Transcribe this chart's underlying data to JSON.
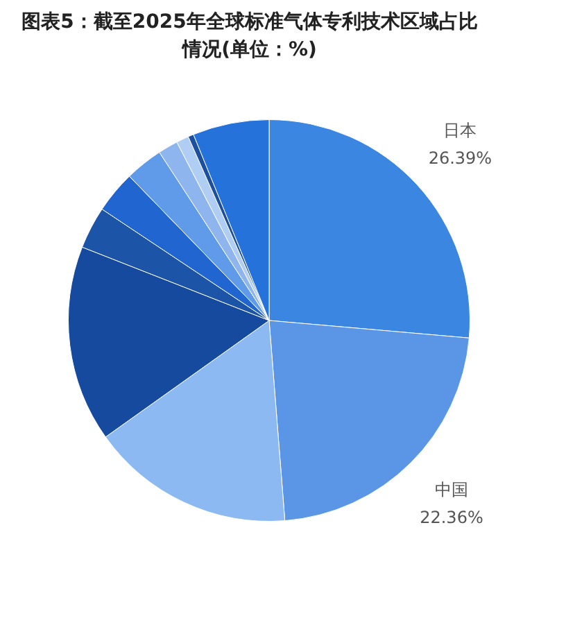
{
  "chart_data": {
    "type": "pie",
    "title": "图表5：截至2025年全球标准气体专利技术区域占比情况(单位：%)",
    "categories": [
      "日本",
      "中国",
      null,
      null,
      null,
      null,
      null,
      null,
      null,
      null,
      null
    ],
    "values": [
      26.39,
      22.36,
      16.4,
      15.8,
      3.4,
      3.4,
      3.05,
      1.6,
      1.0,
      0.45,
      6.15
    ],
    "colors": [
      "#3a86e0",
      "#5b96e6",
      "#8db9f2",
      "#164a9e",
      "#1c54a8",
      "#2165d0",
      "#5f9be8",
      "#8fb5ee",
      "#b0cdf4",
      "#1c4fa0",
      "#2572da"
    ],
    "value_labels": [
      "26.39%",
      "22.36%",
      null,
      null,
      null,
      null,
      null,
      null,
      null,
      null,
      null
    ],
    "legend": false
  }
}
